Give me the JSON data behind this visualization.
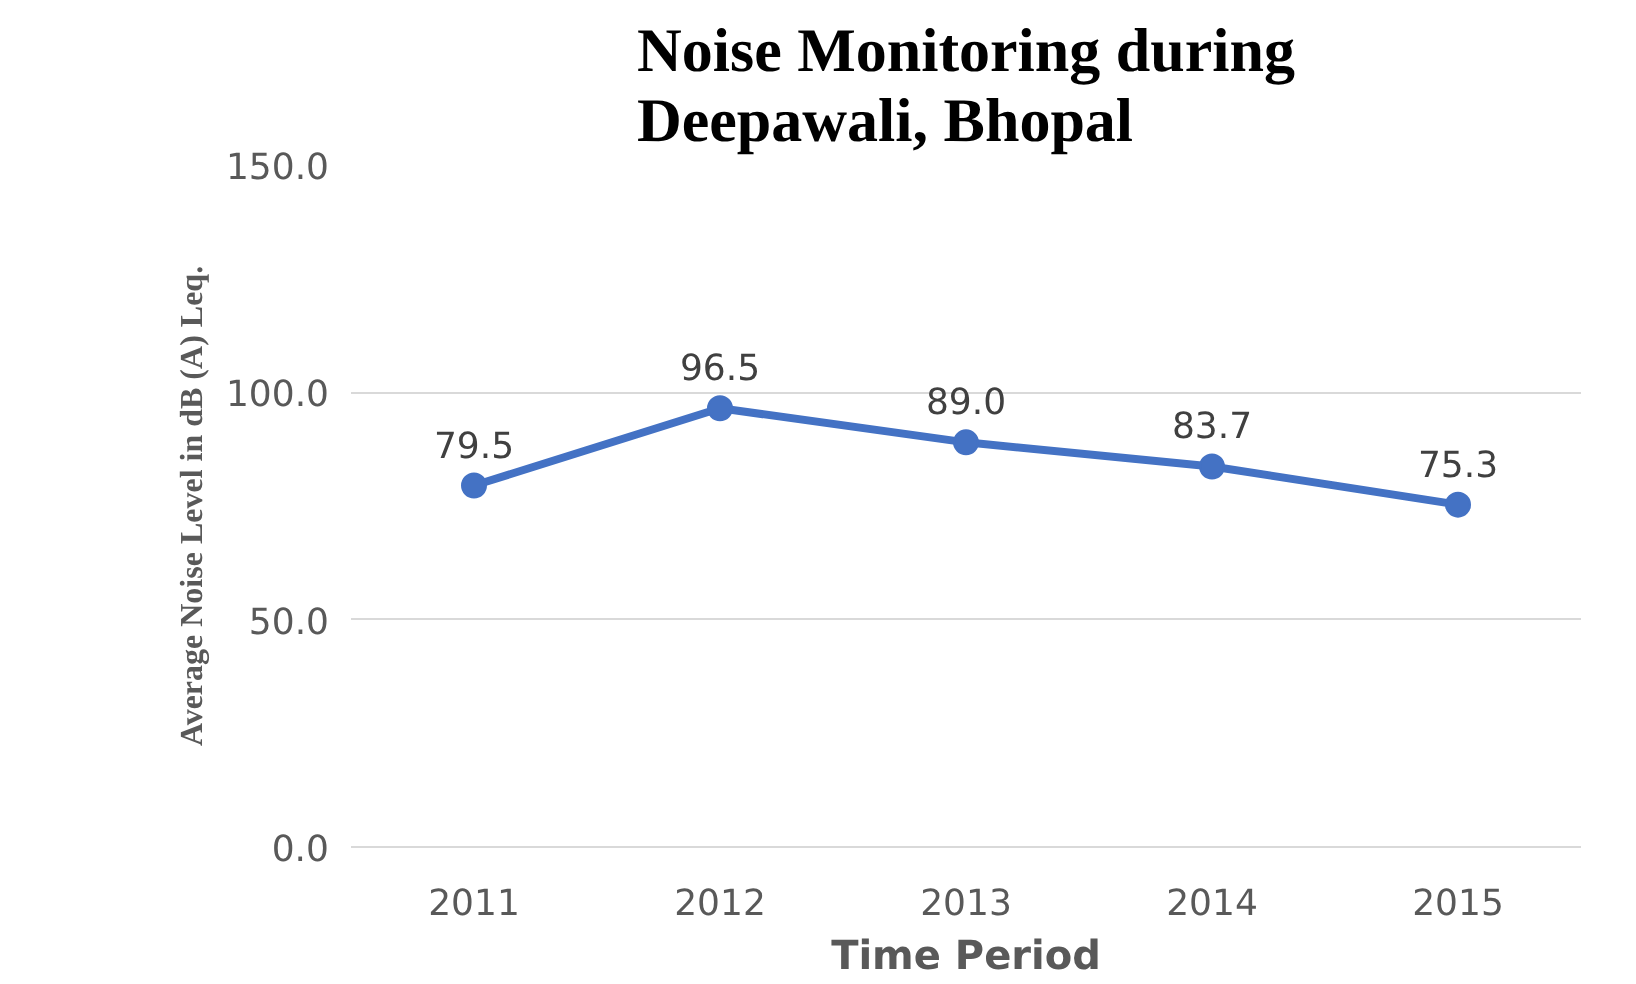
{
  "chart_data": {
    "type": "line",
    "title": "Noise Monitoring during Deepawali, Bhopal",
    "xlabel": "Time Period",
    "ylabel": "Average Noise Level in dB (A) Leq.",
    "categories": [
      "2011",
      "2012",
      "2013",
      "2014",
      "2015"
    ],
    "series": [
      {
        "color": "#4472c4",
        "values": [
          79.5,
          96.5,
          89.0,
          83.7,
          75.3
        ]
      }
    ],
    "value_labels": [
      "79.5",
      "96.5",
      "89.0",
      "83.7",
      "75.3"
    ],
    "ylim": [
      0,
      150
    ],
    "yticks": [
      {
        "value": 0,
        "label": "0.0"
      },
      {
        "value": 50,
        "label": "50.0"
      },
      {
        "value": 100,
        "label": "100.0"
      },
      {
        "value": 150,
        "label": "150.0"
      }
    ],
    "grid": "y",
    "marker": "circle",
    "line_style": "solid"
  }
}
